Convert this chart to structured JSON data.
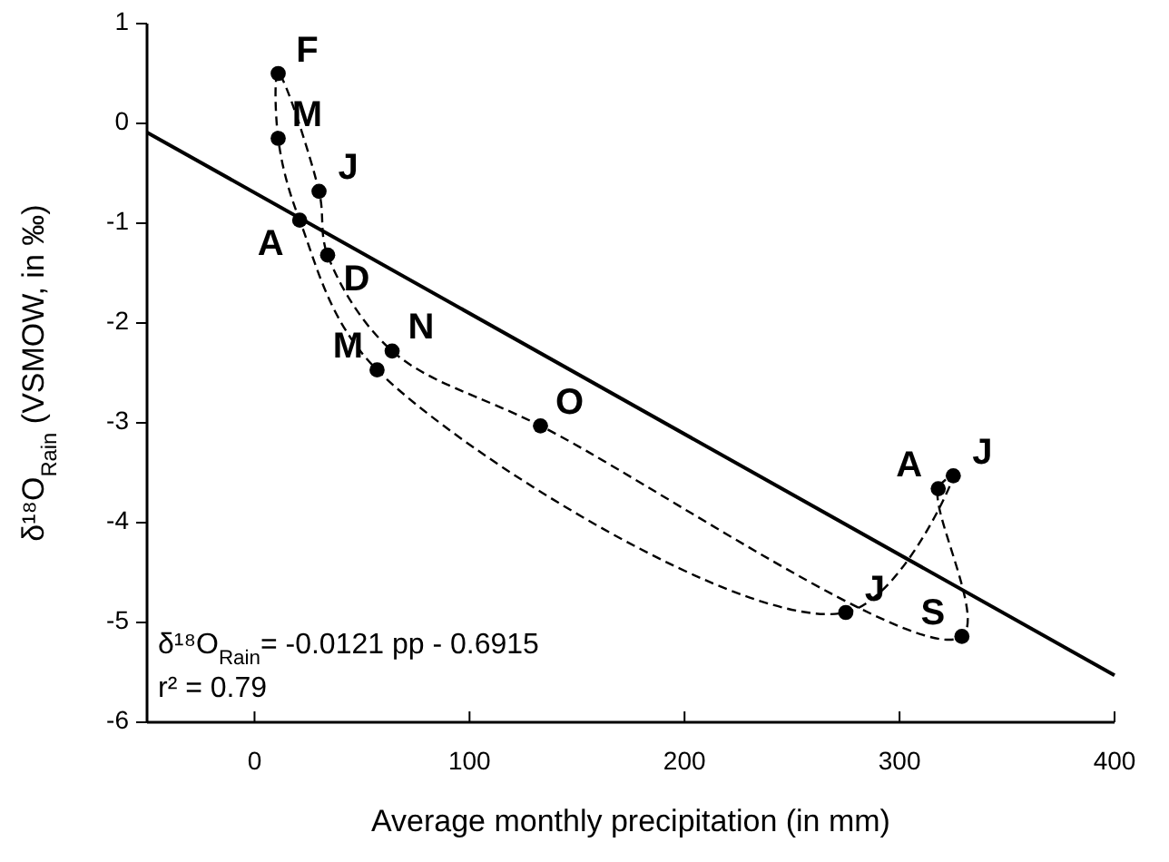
{
  "chart_data": {
    "type": "line",
    "xlabel": "Average monthly precipitation (in mm)",
    "ylabel": "δ¹⁸O$_{Rain}$ (VSMOW, in ‰)",
    "xlim": [
      -50,
      400
    ],
    "xticks": [
      0,
      100,
      200,
      300,
      400
    ],
    "ylim": [
      -6,
      1
    ],
    "yticks": [
      -6,
      -5,
      -4,
      -3,
      -2,
      -1,
      0,
      1
    ],
    "grid": false,
    "series": [
      {
        "color": "#000000",
        "marker": "none",
        "line_style": "solid",
        "x": [
          -50,
          400
        ],
        "values": [
          -0.09,
          -5.53
        ]
      },
      {
        "type": "scatter",
        "color": "#000000",
        "marker": "circle",
        "line_style": "dashed",
        "x": [
          30,
          11,
          11,
          21,
          57,
          275,
          325,
          318,
          329,
          133,
          64,
          34
        ],
        "values": [
          -0.68,
          0.5,
          -0.15,
          -0.97,
          -2.47,
          -4.9,
          -3.53,
          -3.66,
          -5.14,
          -3.03,
          -2.28,
          -1.32
        ]
      }
    ],
    "annotations": [
      {
        "text": "J",
        "x": 30,
        "y": -0.68
      },
      {
        "text": "F",
        "x": 11,
        "y": 0.5
      },
      {
        "text": "M",
        "x": 11,
        "y": -0.15
      },
      {
        "text": "A",
        "x": 21,
        "y": -0.97
      },
      {
        "text": "M",
        "x": 57,
        "y": -2.47
      },
      {
        "text": "J",
        "x": 275,
        "y": -4.9
      },
      {
        "text": "J",
        "x": 325,
        "y": -3.53
      },
      {
        "text": "A",
        "x": 318,
        "y": -3.66
      },
      {
        "text": "S",
        "x": 329,
        "y": -5.14
      },
      {
        "text": "O",
        "x": 133,
        "y": -3.03
      },
      {
        "text": "N",
        "x": 64,
        "y": -2.28
      },
      {
        "text": "D",
        "x": 34,
        "y": -1.32
      },
      "δ¹⁸O$_{Rain}$= -0.0121 pp - 0.6915",
      "r² = 0.79"
    ]
  }
}
